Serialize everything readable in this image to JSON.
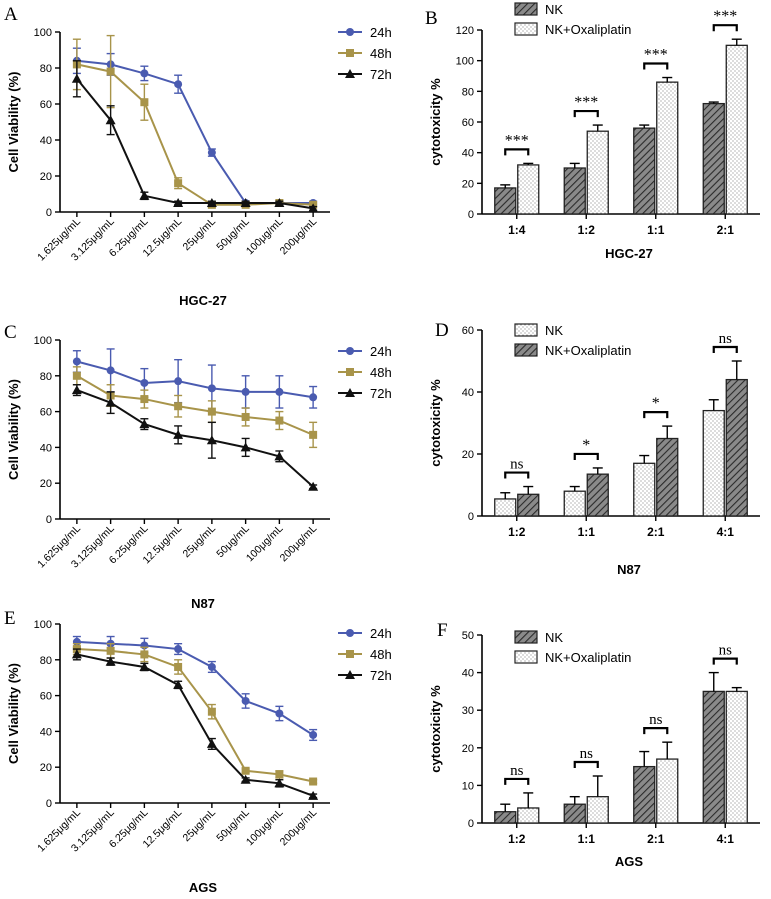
{
  "colors": {
    "series_24h": "#4a5bb0",
    "series_48h": "#a8944a",
    "series_72h": "#111111",
    "bar_edge": "#222222"
  },
  "chart_data": [
    {
      "id": "A",
      "panel_label": "A",
      "type": "line",
      "xlabel": "HGC-27",
      "ylabel": "Cell Viability (%)",
      "ylim": [
        0,
        100
      ],
      "yticks": [
        0,
        20,
        40,
        60,
        80,
        100
      ],
      "categories": [
        "1.625μg/mL",
        "3.125μg/mL",
        "6.25μg/mL",
        "12.5μg/mL",
        "25μg/mL",
        "50μg/mL",
        "100μg/mL",
        "200μg/mL"
      ],
      "series": [
        {
          "name": "24h",
          "marker": "circle",
          "values": [
            84,
            82,
            77,
            71,
            33,
            5,
            5,
            5
          ],
          "errors": [
            7,
            6,
            4,
            5,
            2,
            1,
            1,
            1
          ]
        },
        {
          "name": "48h",
          "marker": "square",
          "values": [
            82,
            78,
            61,
            16,
            4,
            4,
            5,
            4
          ],
          "errors": [
            14,
            20,
            10,
            3,
            1,
            1,
            1,
            1
          ]
        },
        {
          "name": "72h",
          "marker": "triangle",
          "values": [
            74,
            51,
            9,
            5,
            5,
            5,
            5,
            2
          ],
          "errors": [
            10,
            8,
            2,
            1,
            1,
            1,
            1,
            1
          ]
        }
      ]
    },
    {
      "id": "B",
      "panel_label": "B",
      "type": "bar",
      "xlabel": "HGC-27",
      "ylabel": "cytotoxicity %",
      "ylim": [
        0,
        120
      ],
      "yticks": [
        0,
        20,
        40,
        60,
        80,
        100,
        120
      ],
      "categories": [
        "1:4",
        "1:2",
        "1:1",
        "2:1"
      ],
      "significance": [
        "***",
        "***",
        "***",
        "***"
      ],
      "series": [
        {
          "name": "NK",
          "fill": "hatch",
          "values": [
            17,
            30,
            56,
            72
          ],
          "errors": [
            2,
            3,
            2,
            1
          ]
        },
        {
          "name": "NK+Oxaliplatin",
          "fill": "dots",
          "values": [
            32,
            54,
            86,
            110
          ],
          "errors": [
            1,
            4,
            3,
            4
          ]
        }
      ]
    },
    {
      "id": "C",
      "panel_label": "C",
      "type": "line",
      "xlabel": "N87",
      "ylabel": "Cell Viability (%)",
      "ylim": [
        0,
        100
      ],
      "yticks": [
        0,
        20,
        40,
        60,
        80,
        100
      ],
      "categories": [
        "1.625μg/mL",
        "3.125μg/mL",
        "6.25μg/mL",
        "12.5μg/mL",
        "25μg/mL",
        "50μg/mL",
        "100μg/mL",
        "200μg/mL"
      ],
      "series": [
        {
          "name": "24h",
          "marker": "circle",
          "values": [
            88,
            83,
            76,
            77,
            73,
            71,
            71,
            68
          ],
          "errors": [
            6,
            12,
            8,
            12,
            13,
            9,
            9,
            6
          ]
        },
        {
          "name": "48h",
          "marker": "square",
          "values": [
            80,
            69,
            67,
            63,
            60,
            57,
            55,
            47
          ],
          "errors": [
            5,
            6,
            5,
            6,
            6,
            5,
            5,
            7
          ]
        },
        {
          "name": "72h",
          "marker": "triangle",
          "values": [
            72,
            65,
            53,
            47,
            44,
            40,
            35,
            18
          ],
          "errors": [
            3,
            6,
            3,
            5,
            10,
            5,
            3,
            1
          ]
        }
      ]
    },
    {
      "id": "D",
      "panel_label": "D",
      "type": "bar",
      "xlabel": "N87",
      "ylabel": "cytotoxicity %",
      "ylim": [
        0,
        60
      ],
      "yticks": [
        0,
        20,
        40,
        60
      ],
      "categories": [
        "1:2",
        "1:1",
        "2:1",
        "4:1"
      ],
      "significance": [
        "ns",
        "*",
        "*",
        "ns"
      ],
      "series": [
        {
          "name": "NK",
          "fill": "dots",
          "values": [
            5.5,
            8,
            17,
            34
          ],
          "errors": [
            2,
            1.5,
            2.5,
            3.5
          ]
        },
        {
          "name": "NK+Oxaliplatin",
          "fill": "hatch",
          "values": [
            7,
            13.5,
            25,
            44
          ],
          "errors": [
            2.5,
            2,
            4,
            6
          ]
        }
      ]
    },
    {
      "id": "E",
      "panel_label": "E",
      "type": "line",
      "xlabel": "AGS",
      "ylabel": "Cell Viability (%)",
      "ylim": [
        0,
        100
      ],
      "yticks": [
        0,
        20,
        40,
        60,
        80,
        100
      ],
      "categories": [
        "1.625μg/mL",
        "3.125μg/mL",
        "6.25μg/mL",
        "12.5μg/mL",
        "25μg/mL",
        "50μg/mL",
        "100μg/mL",
        "200μg/mL"
      ],
      "series": [
        {
          "name": "24h",
          "marker": "circle",
          "values": [
            90,
            89,
            88,
            86,
            76,
            57,
            50,
            38
          ],
          "errors": [
            3,
            4,
            4,
            3,
            3,
            4,
            4,
            3
          ]
        },
        {
          "name": "48h",
          "marker": "square",
          "values": [
            86,
            85,
            83,
            76,
            51,
            18,
            16,
            12
          ],
          "errors": [
            3,
            4,
            4,
            4,
            4,
            1,
            2,
            1
          ]
        },
        {
          "name": "72h",
          "marker": "triangle",
          "values": [
            83,
            79,
            76,
            66,
            33,
            13,
            11,
            4
          ],
          "errors": [
            3,
            2,
            2,
            2,
            3,
            1,
            2,
            1
          ]
        }
      ]
    },
    {
      "id": "F",
      "panel_label": "F",
      "type": "bar",
      "xlabel": "AGS",
      "ylabel": "cytotoxicity %",
      "ylim": [
        0,
        50
      ],
      "yticks": [
        0,
        10,
        20,
        30,
        40,
        50
      ],
      "categories": [
        "1:2",
        "1:1",
        "2:1",
        "4:1"
      ],
      "significance": [
        "ns",
        "ns",
        "ns",
        "ns"
      ],
      "series": [
        {
          "name": "NK",
          "fill": "hatch",
          "values": [
            3,
            5,
            15,
            35
          ],
          "errors": [
            2,
            2,
            4,
            5
          ]
        },
        {
          "name": "NK+Oxaliplatin",
          "fill": "dots",
          "values": [
            4,
            7,
            17,
            35
          ],
          "errors": [
            4,
            5.5,
            4.5,
            1
          ]
        }
      ]
    }
  ]
}
